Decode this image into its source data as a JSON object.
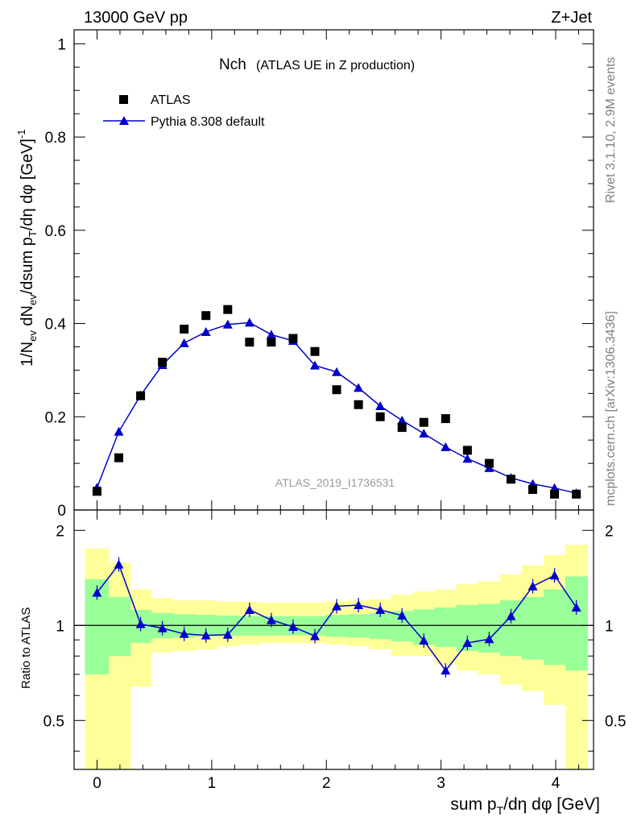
{
  "header": {
    "left": "13000 GeV pp",
    "right": "Z+Jet"
  },
  "side_labels": {
    "rivet": "Rivet 3.1.10,  2.9M events",
    "mcplots": "mcplots.cern.ch [arXiv:1306.3436]"
  },
  "chart_data": [
    {
      "type": "scatter",
      "title": "Nch",
      "subtitle": "(ATLAS UE in Z production)",
      "watermark": "ATLAS_2019_I1736531",
      "ylabel": "1/N_ev dN_ev/dsum p_T/dη dφ [GeV]^-1",
      "xlim": [
        -0.2,
        4.33
      ],
      "ylim": [
        0,
        1.03
      ],
      "yticks": [
        "0",
        "0.2",
        "0.4",
        "0.6",
        "0.8",
        "1"
      ],
      "legend": [
        "ATLAS",
        "Pythia 8.308 default"
      ],
      "legend_position": "top-left",
      "x": [
        0.0,
        0.19,
        0.38,
        0.57,
        0.76,
        0.95,
        1.14,
        1.33,
        1.52,
        1.71,
        1.9,
        2.09,
        2.28,
        2.47,
        2.66,
        2.85,
        3.04,
        3.23,
        3.42,
        3.61,
        3.8,
        3.99,
        4.18
      ],
      "series": [
        {
          "name": "ATLAS",
          "marker": "square",
          "color": "#000000",
          "values": [
            0.04,
            0.112,
            0.245,
            0.317,
            0.388,
            0.417,
            0.43,
            0.36,
            0.36,
            0.368,
            0.34,
            0.258,
            0.226,
            0.2,
            0.177,
            0.188,
            0.196,
            0.128,
            0.1,
            0.066,
            0.044,
            0.034,
            0.034
          ]
        },
        {
          "name": "Pythia 8.308 default",
          "marker": "triangle",
          "color": "#0000cc",
          "values": [
            0.048,
            0.168,
            0.246,
            0.311,
            0.358,
            0.382,
            0.398,
            0.402,
            0.376,
            0.363,
            0.31,
            0.296,
            0.262,
            0.223,
            0.192,
            0.164,
            0.135,
            0.11,
            0.09,
            0.069,
            0.056,
            0.047,
            0.036
          ]
        }
      ]
    },
    {
      "type": "line",
      "ylabel": "Ratio to ATLAS",
      "xlabel": "sum p_T/dη dφ [GeV]",
      "xlim": [
        -0.2,
        4.33
      ],
      "ylim": [
        0.35,
        2.32
      ],
      "xticks": [
        "0",
        "1",
        "2",
        "3",
        "4"
      ],
      "yticks": [
        "0.5",
        "1",
        "2"
      ],
      "reference": 1,
      "x": [
        0.0,
        0.19,
        0.38,
        0.57,
        0.76,
        0.95,
        1.14,
        1.33,
        1.52,
        1.71,
        1.9,
        2.09,
        2.28,
        2.47,
        2.66,
        2.85,
        3.04,
        3.23,
        3.42,
        3.61,
        3.8,
        3.99,
        4.18
      ],
      "bin_edges": [
        -0.105,
        0.105,
        0.295,
        0.475,
        0.665,
        0.855,
        1.045,
        1.235,
        1.425,
        1.615,
        1.805,
        1.995,
        2.185,
        2.375,
        2.565,
        2.755,
        2.945,
        3.135,
        3.325,
        3.515,
        3.705,
        3.895,
        4.085,
        4.28
      ],
      "series": [
        {
          "name": "Pythia 8.308 default / ATLAS",
          "color": "#0000cc",
          "values": [
            1.27,
            1.56,
            1.01,
            0.98,
            0.94,
            0.93,
            0.935,
            1.12,
            1.04,
            0.99,
            0.925,
            1.15,
            1.16,
            1.12,
            1.075,
            0.895,
            0.72,
            0.88,
            0.905,
            1.07,
            1.33,
            1.44,
            1.14
          ]
        }
      ],
      "bands": [
        {
          "name": "stat",
          "color": "#99ff99",
          "lower": [
            0.7,
            0.8,
            0.88,
            0.91,
            0.915,
            0.925,
            0.925,
            0.93,
            0.93,
            0.93,
            0.93,
            0.92,
            0.915,
            0.905,
            0.89,
            0.87,
            0.855,
            0.83,
            0.82,
            0.8,
            0.78,
            0.75,
            0.72
          ],
          "upper": [
            1.4,
            1.23,
            1.12,
            1.095,
            1.085,
            1.08,
            1.075,
            1.07,
            1.07,
            1.07,
            1.07,
            1.08,
            1.085,
            1.095,
            1.11,
            1.125,
            1.14,
            1.16,
            1.17,
            1.2,
            1.23,
            1.3,
            1.43
          ]
        },
        {
          "name": "total",
          "color": "#ffff99",
          "lower": [
            0.35,
            0.35,
            0.64,
            0.82,
            0.83,
            0.84,
            0.86,
            0.87,
            0.88,
            0.88,
            0.88,
            0.87,
            0.86,
            0.84,
            0.8,
            0.8,
            0.75,
            0.72,
            0.7,
            0.65,
            0.62,
            0.56,
            0.35
          ],
          "upper": [
            1.75,
            1.58,
            1.3,
            1.22,
            1.2,
            1.2,
            1.19,
            1.19,
            1.18,
            1.18,
            1.18,
            1.19,
            1.2,
            1.21,
            1.25,
            1.28,
            1.3,
            1.35,
            1.38,
            1.45,
            1.55,
            1.67,
            1.8
          ]
        }
      ]
    }
  ]
}
